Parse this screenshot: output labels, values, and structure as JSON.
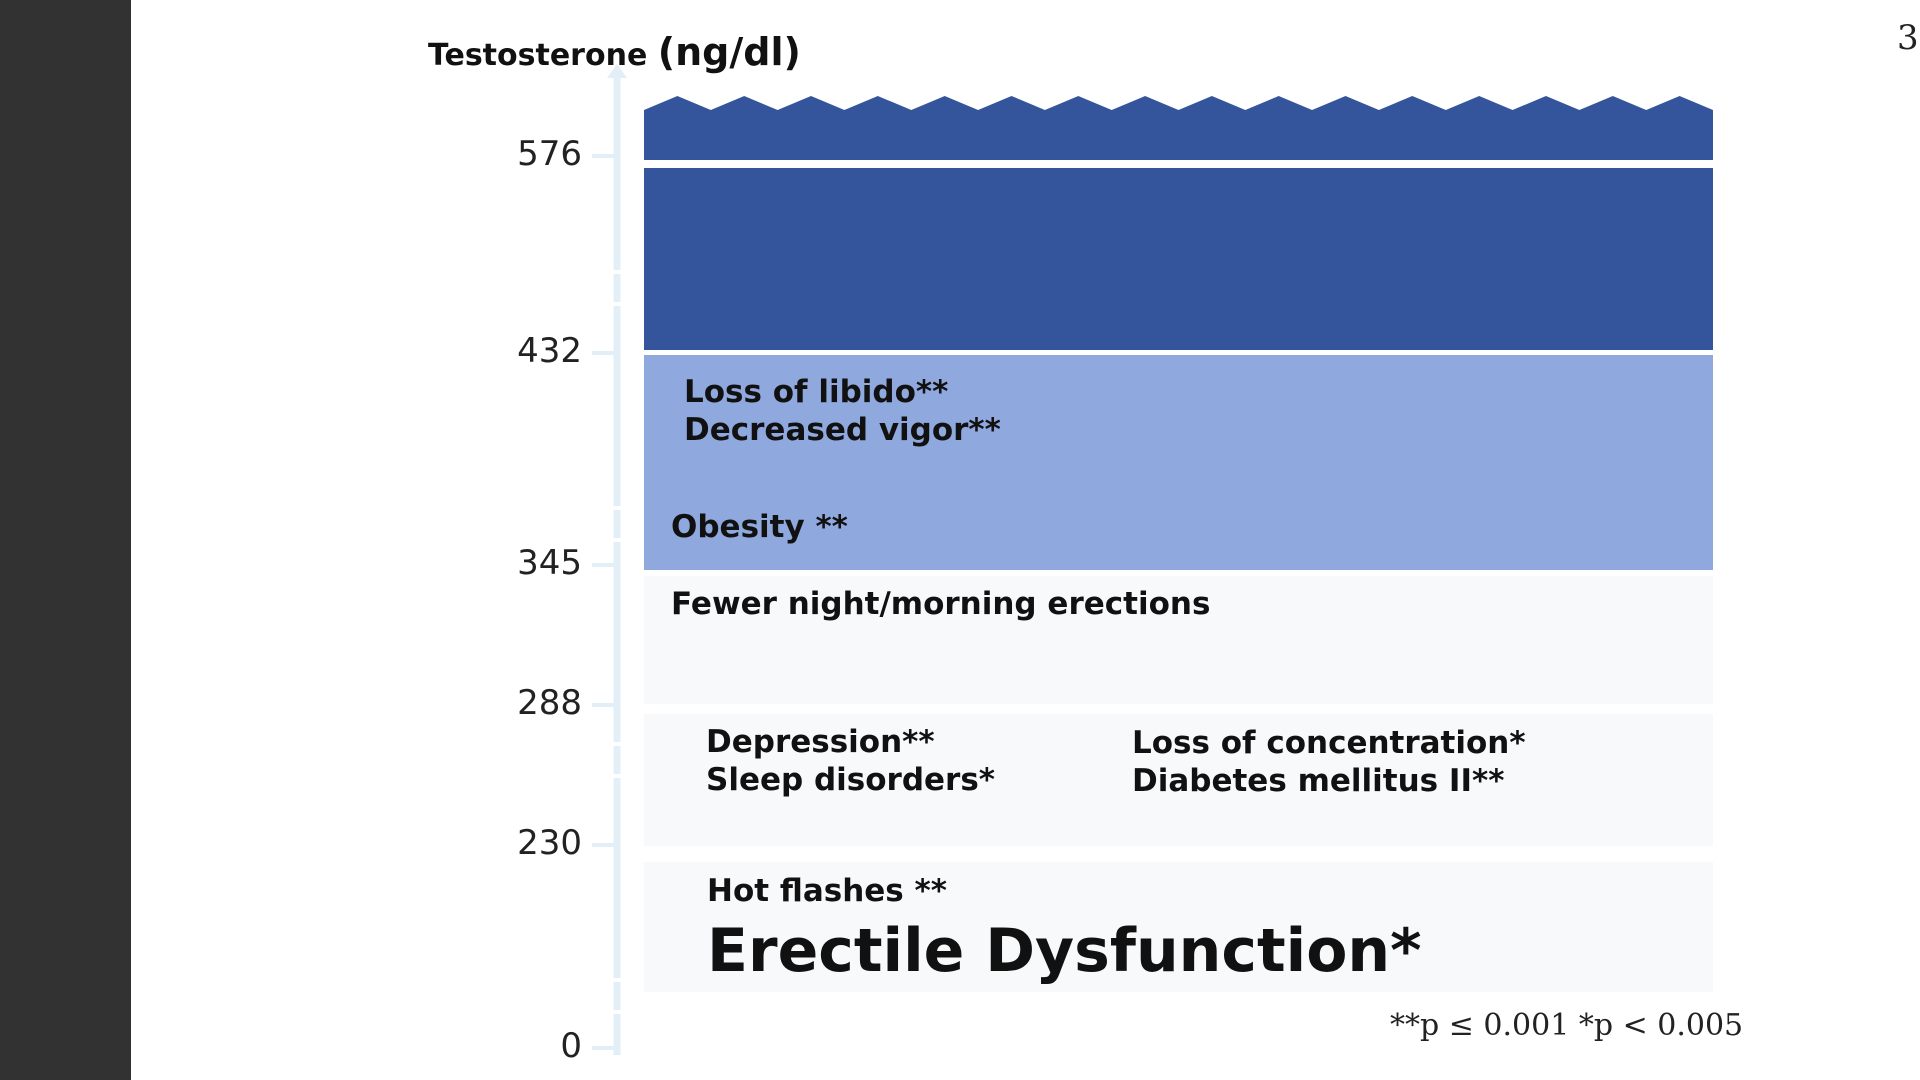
{
  "page_number": "3",
  "chart_data": {
    "type": "table",
    "ylabel": "Testosterone",
    "yunit": "(ng/dl)",
    "y_ticks": [
      576,
      432,
      345,
      288,
      230,
      0
    ],
    "bands": [
      {
        "from": 432,
        "to": 576,
        "color": "#34559c",
        "labels": []
      },
      {
        "from": 345,
        "to": 432,
        "color": "#8fa8de",
        "labels": [
          "Loss of libido**",
          "Decreased vigor**",
          "Obesity **"
        ]
      },
      {
        "from": 288,
        "to": 345,
        "color": "#f8f9fb",
        "labels": [
          "Fewer night/morning erections"
        ]
      },
      {
        "from": 230,
        "to": 288,
        "color": "#f8f9fb",
        "labels": [
          "Depression**",
          "Sleep disorders*",
          "Loss of concentration*",
          "Diabetes mellitus II**"
        ]
      },
      {
        "from": 0,
        "to": 230,
        "color": "#f8f9fb",
        "labels": [
          "Hot flashes **",
          "Erectile Dysfunction*"
        ]
      }
    ],
    "top_band_color": "#34559c",
    "footnote": "**p ≤ 0.001 *p < 0.005"
  }
}
